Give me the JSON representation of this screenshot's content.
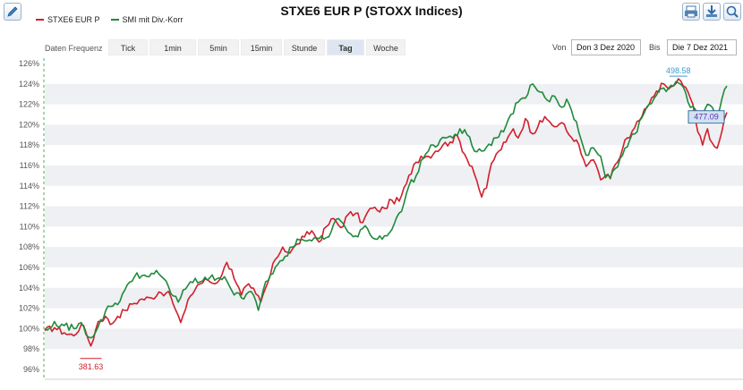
{
  "title": "STXE6 EUR P (STOXX Indices)",
  "toolbar": {
    "edit_icon": "pencil-icon",
    "print_icon": "printer-icon",
    "download_icon": "download-icon",
    "zoom_icon": "zoom-icon"
  },
  "legend": [
    {
      "name": "STXE6 EUR P",
      "color": "#d0202c"
    },
    {
      "name": "SMI mit Div.-Korr",
      "color": "#1f8a3a"
    }
  ],
  "frequency": {
    "label": "Daten Frequenz",
    "tabs": [
      "Tick",
      "1min",
      "5min",
      "15min",
      "Stunde",
      "Tag",
      "Woche"
    ],
    "active": "Tag"
  },
  "date_range": {
    "from_label": "Von",
    "from_value": "Don 3 Dez 2020",
    "to_label": "Bis",
    "to_value": "Die 7 Dez 2021"
  },
  "chart_data": {
    "type": "line",
    "y_unit": "%",
    "ylim": [
      96,
      126.5
    ],
    "yticks": [
      96,
      98,
      100,
      102,
      104,
      106,
      108,
      110,
      112,
      114,
      116,
      118,
      120,
      122,
      124,
      126
    ],
    "ytick_labels": [
      "96%",
      "98%",
      "100%",
      "102%",
      "104%",
      "106%",
      "108%",
      "110%",
      "112%",
      "114%",
      "116%",
      "118%",
      "120%",
      "122%",
      "124%",
      "126%"
    ],
    "grid": "alternating horizontal bands",
    "x_start": "Don 3 Dez 2020",
    "x_end": "Die 7 Dez 2021",
    "points": 255,
    "annotations": {
      "min_label": "381.63",
      "max_label": "498.58",
      "last_label": "477.09"
    },
    "series": [
      {
        "name": "STXE6 EUR P",
        "color": "#d0202c",
        "anchors": [
          [
            0,
            99.8
          ],
          [
            4,
            100.1
          ],
          [
            8,
            99.6
          ],
          [
            12,
            99.3
          ],
          [
            15,
            100.4
          ],
          [
            17,
            99.6
          ],
          [
            19,
            98.3
          ],
          [
            22,
            100.7
          ],
          [
            25,
            101.2
          ],
          [
            27,
            100.4
          ],
          [
            30,
            101.2
          ],
          [
            33,
            101.8
          ],
          [
            36,
            102.4
          ],
          [
            40,
            102.9
          ],
          [
            44,
            103.0
          ],
          [
            47,
            103.6
          ],
          [
            50,
            103.5
          ],
          [
            52,
            103.1
          ],
          [
            54,
            101.8
          ],
          [
            56,
            100.6
          ],
          [
            58,
            101.9
          ],
          [
            60,
            103.2
          ],
          [
            63,
            104.3
          ],
          [
            67,
            104.8
          ],
          [
            70,
            104.4
          ],
          [
            73,
            105.3
          ],
          [
            75,
            106.5
          ],
          [
            77,
            105.8
          ],
          [
            79,
            104.4
          ],
          [
            81,
            103.3
          ],
          [
            83,
            104.2
          ],
          [
            85,
            104.0
          ],
          [
            87,
            103.4
          ],
          [
            89,
            102.6
          ],
          [
            92,
            104.6
          ],
          [
            95,
            106.8
          ],
          [
            98,
            108.0
          ],
          [
            101,
            107.4
          ],
          [
            104,
            108.3
          ],
          [
            107,
            109.0
          ],
          [
            110,
            109.6
          ],
          [
            113,
            108.5
          ],
          [
            116,
            110.0
          ],
          [
            119,
            110.8
          ],
          [
            122,
            109.9
          ],
          [
            125,
            111.2
          ],
          [
            128,
            111.3
          ],
          [
            131,
            110.4
          ],
          [
            134,
            111.8
          ],
          [
            137,
            111.6
          ],
          [
            140,
            111.8
          ],
          [
            143,
            112.6
          ],
          [
            146,
            112.5
          ],
          [
            149,
            114.2
          ],
          [
            152,
            116.1
          ],
          [
            155,
            116.9
          ],
          [
            158,
            116.9
          ],
          [
            161,
            117.4
          ],
          [
            164,
            118.0
          ],
          [
            167,
            118.3
          ],
          [
            170,
            118.9
          ],
          [
            173,
            117.1
          ],
          [
            176,
            115.9
          ],
          [
            178,
            114.5
          ],
          [
            180,
            112.9
          ],
          [
            182,
            113.8
          ],
          [
            184,
            116.2
          ],
          [
            187,
            117.4
          ],
          [
            190,
            118.3
          ],
          [
            193,
            119.6
          ],
          [
            195,
            118.7
          ],
          [
            198,
            120.6
          ],
          [
            201,
            119.1
          ],
          [
            204,
            120.4
          ],
          [
            207,
            120.5
          ],
          [
            210,
            119.8
          ],
          [
            213,
            120.2
          ],
          [
            216,
            119.0
          ],
          [
            219,
            118.5
          ],
          [
            221,
            117.1
          ],
          [
            223,
            115.9
          ],
          [
            225,
            116.5
          ],
          [
            227,
            116.1
          ],
          [
            229,
            114.6
          ],
          [
            231,
            115.0
          ],
          [
            233,
            114.7
          ],
          [
            235,
            116.1
          ],
          [
            237,
            116.8
          ],
          [
            239,
            118.5
          ],
          [
            241,
            118.7
          ],
          [
            243,
            119.7
          ],
          [
            246,
            120.8
          ],
          [
            249,
            122.0
          ],
          [
            252,
            123.3
          ],
          [
            255,
            124.0
          ],
          [
            257,
            123.5
          ],
          [
            259,
            123.8
          ],
          [
            261,
            124.5
          ],
          [
            263,
            123.8
          ],
          [
            265,
            123.2
          ],
          [
            267,
            122.0
          ],
          [
            269,
            119.3
          ],
          [
            271,
            118.0
          ],
          [
            273,
            119.6
          ],
          [
            275,
            118.2
          ],
          [
            277,
            117.7
          ],
          [
            279,
            119.4
          ],
          [
            281,
            121.2
          ]
        ]
      },
      {
        "name": "SMI mit Div.-Korr",
        "color": "#1f8a3a",
        "anchors": [
          [
            0,
            100.0
          ],
          [
            4,
            100.7
          ],
          [
            8,
            100.3
          ],
          [
            12,
            100.0
          ],
          [
            15,
            100.6
          ],
          [
            17,
            99.4
          ],
          [
            19,
            99.1
          ],
          [
            22,
            100.2
          ],
          [
            25,
            101.7
          ],
          [
            28,
            102.2
          ],
          [
            31,
            102.7
          ],
          [
            34,
            104.3
          ],
          [
            37,
            105.1
          ],
          [
            40,
            105.2
          ],
          [
            43,
            105.1
          ],
          [
            46,
            105.7
          ],
          [
            49,
            104.9
          ],
          [
            51,
            104.1
          ],
          [
            53,
            103.2
          ],
          [
            55,
            102.6
          ],
          [
            57,
            103.8
          ],
          [
            60,
            104.6
          ],
          [
            64,
            104.6
          ],
          [
            68,
            105.0
          ],
          [
            71,
            104.9
          ],
          [
            74,
            105.1
          ],
          [
            76,
            104.2
          ],
          [
            78,
            103.3
          ],
          [
            80,
            103.5
          ],
          [
            82,
            102.9
          ],
          [
            84,
            103.6
          ],
          [
            86,
            103.3
          ],
          [
            88,
            101.8
          ],
          [
            90,
            103.8
          ],
          [
            93,
            105.3
          ],
          [
            96,
            106.3
          ],
          [
            99,
            107.1
          ],
          [
            102,
            108.0
          ],
          [
            105,
            108.7
          ],
          [
            108,
            108.6
          ],
          [
            111,
            108.9
          ],
          [
            114,
            109.1
          ],
          [
            117,
            109.0
          ],
          [
            120,
            110.7
          ],
          [
            123,
            110.3
          ],
          [
            126,
            109.3
          ],
          [
            129,
            109.0
          ],
          [
            132,
            110.1
          ],
          [
            135,
            108.9
          ],
          [
            138,
            109.1
          ],
          [
            141,
            109.1
          ],
          [
            144,
            110.3
          ],
          [
            147,
            111.5
          ],
          [
            150,
            114.0
          ],
          [
            153,
            115.0
          ],
          [
            156,
            116.7
          ],
          [
            159,
            118.0
          ],
          [
            162,
            118.0
          ],
          [
            165,
            118.7
          ],
          [
            168,
            118.7
          ],
          [
            171,
            119.6
          ],
          [
            174,
            119.0
          ],
          [
            177,
            117.4
          ],
          [
            180,
            117.4
          ],
          [
            183,
            118.1
          ],
          [
            186,
            118.7
          ],
          [
            189,
            119.3
          ],
          [
            192,
            121.0
          ],
          [
            195,
            122.2
          ],
          [
            198,
            122.6
          ],
          [
            201,
            124.0
          ],
          [
            204,
            123.2
          ],
          [
            207,
            122.4
          ],
          [
            210,
            122.8
          ],
          [
            213,
            121.7
          ],
          [
            215,
            122.5
          ],
          [
            217,
            121.4
          ],
          [
            219,
            120.3
          ],
          [
            221,
            118.5
          ],
          [
            223,
            117.0
          ],
          [
            225,
            117.7
          ],
          [
            227,
            117.4
          ],
          [
            229,
            116.9
          ],
          [
            231,
            114.8
          ],
          [
            233,
            114.8
          ],
          [
            235,
            115.7
          ],
          [
            237,
            116.7
          ],
          [
            239,
            117.7
          ],
          [
            241,
            118.5
          ],
          [
            243,
            119.1
          ],
          [
            246,
            120.7
          ],
          [
            249,
            122.0
          ],
          [
            252,
            122.9
          ],
          [
            255,
            123.6
          ],
          [
            257,
            123.6
          ],
          [
            259,
            123.8
          ],
          [
            261,
            124.1
          ],
          [
            263,
            123.7
          ],
          [
            265,
            122.2
          ],
          [
            267,
            121.8
          ],
          [
            269,
            121.0
          ],
          [
            271,
            120.9
          ],
          [
            273,
            122.0
          ],
          [
            275,
            121.7
          ],
          [
            277,
            121.1
          ],
          [
            279,
            122.6
          ],
          [
            281,
            123.8
          ]
        ]
      }
    ]
  }
}
